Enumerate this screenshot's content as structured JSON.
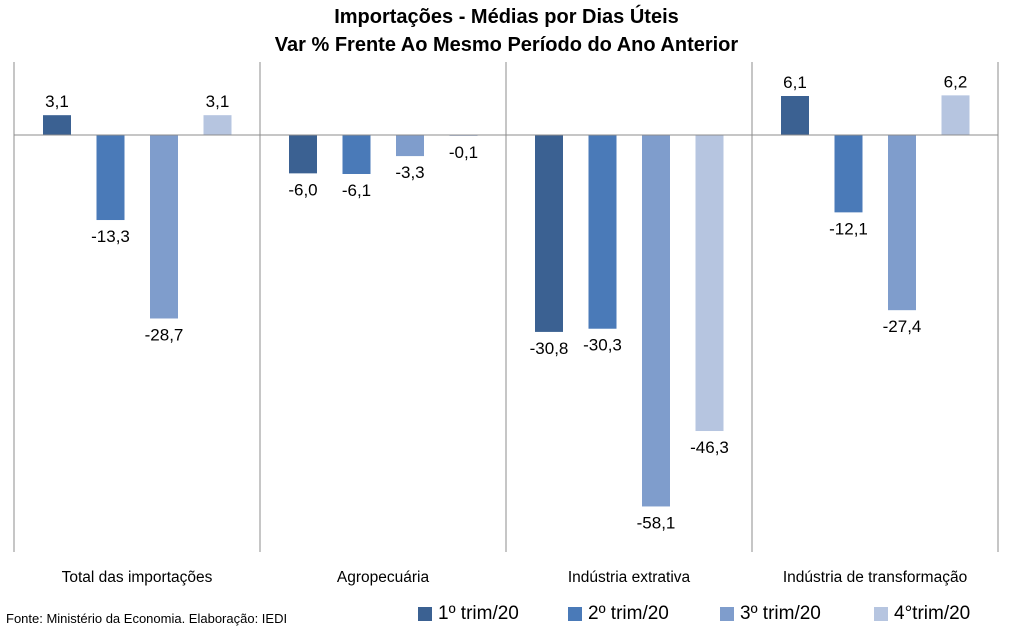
{
  "chart_data": {
    "type": "bar",
    "title": "Importações - Médias por Dias Úteis",
    "subtitle": "Var % Frente Ao Mesmo Período do Ano Anterior",
    "categories": [
      "Total das importações",
      "Agropecuária",
      "Indústria extrativa",
      "Indústria de transformação"
    ],
    "series": [
      {
        "name": "1º trim/20",
        "color": "#3b6192",
        "values": [
          3.1,
          -6.0,
          -30.8,
          6.1
        ],
        "labels": [
          "3,1",
          "-6,0",
          "-30,8",
          "6,1"
        ]
      },
      {
        "name": "2º trim/20",
        "color": "#4a7ab8",
        "values": [
          -13.3,
          -6.1,
          -30.3,
          -12.1
        ],
        "labels": [
          "-13,3",
          "-6,1",
          "-30,3",
          "-12,1"
        ]
      },
      {
        "name": "3º trim/20",
        "color": "#7f9dcc",
        "values": [
          -28.7,
          -3.3,
          -58.1,
          -27.4
        ],
        "labels": [
          "-28,7",
          "-3,3",
          "-58,1",
          "-27,4"
        ]
      },
      {
        "name": "4°trim/20",
        "color": "#b6c5e0",
        "values": [
          3.1,
          -0.1,
          -46.3,
          6.2
        ],
        "labels": [
          "3,1",
          "-0,1",
          "-46,3",
          "6,2"
        ]
      }
    ],
    "ylim": [
      -62,
      11
    ],
    "grid": false,
    "legend_position": "bottom-right"
  },
  "source": "Fonte: Ministério da Economia. Elaboração: IEDI"
}
